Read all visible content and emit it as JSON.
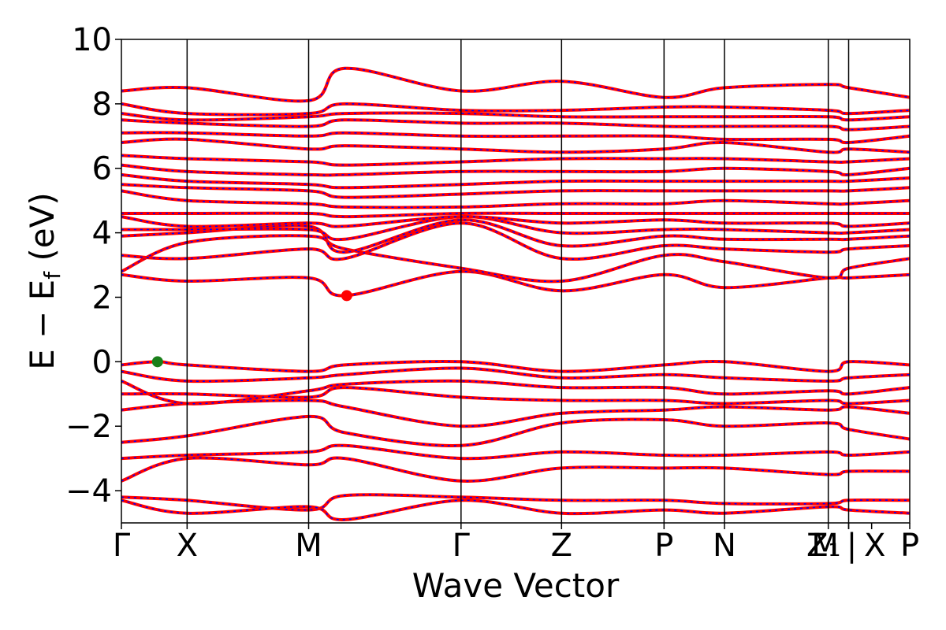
{
  "chart_data": {
    "type": "line",
    "title": "",
    "xlabel": "Wave Vector",
    "ylabel_parts": {
      "main": "E − E",
      "sub": "f",
      "unit": " (eV)"
    },
    "ylim": [
      -5,
      10
    ],
    "yticks": [
      -4,
      -2,
      0,
      2,
      4,
      6,
      8,
      10
    ],
    "ytick_labels": [
      "−4",
      "−2",
      "0",
      "2",
      "4",
      "6",
      "8",
      "10"
    ],
    "xlim": [
      0,
      12
    ],
    "kpath_ticks": [
      {
        "x": 0.0,
        "label": "Γ"
      },
      {
        "x": 1.0,
        "label": "X"
      },
      {
        "x": 2.85,
        "label": "M"
      },
      {
        "x": 5.17,
        "label": "Γ"
      },
      {
        "x": 6.7,
        "label": "Z"
      },
      {
        "x": 8.26,
        "label": "P"
      },
      {
        "x": 9.18,
        "label": "N"
      },
      {
        "x": 10.76,
        "label": "Z₁"
      },
      {
        "x": 11.07,
        "label": "M"
      },
      {
        "x": 11.07,
        "label": "|"
      },
      {
        "x": 11.42,
        "label": "X"
      },
      {
        "x": 12.0,
        "label": "P"
      }
    ],
    "vertical_lines_x": [
      1.0,
      2.85,
      5.17,
      6.7,
      8.26,
      9.18,
      10.76,
      11.07
    ],
    "series_style": {
      "dft_color": "#ff0000",
      "wannier_color": "#0000ff",
      "dft_width": 4,
      "wannier_dash": "3,5"
    },
    "series": [
      {
        "x": [
          0,
          1,
          2.85,
          3.4,
          5.17,
          6.7,
          8.26,
          9.18,
          10.76,
          11.07,
          12
        ],
        "y": [
          -4.2,
          -4.3,
          -4.6,
          -4.15,
          -4.2,
          -4.3,
          -4.3,
          -4.4,
          -4.4,
          -4.3,
          -4.3
        ]
      },
      {
        "x": [
          0,
          1,
          2.85,
          3.4,
          5.17,
          6.7,
          8.26,
          9.18,
          10.76,
          11.07,
          12
        ],
        "y": [
          -4.3,
          -4.7,
          -4.5,
          -4.9,
          -4.3,
          -4.7,
          -4.6,
          -4.7,
          -4.5,
          -4.6,
          -4.7
        ]
      },
      {
        "x": [
          0,
          1,
          2.85,
          3.4,
          5.17,
          6.7,
          8.26,
          9.18,
          10.76,
          11.07,
          12
        ],
        "y": [
          -3.7,
          -3.0,
          -3.2,
          -3.0,
          -3.7,
          -3.3,
          -3.3,
          -3.3,
          -3.5,
          -3.4,
          -3.4
        ]
      },
      {
        "x": [
          0,
          1,
          2.85,
          3.4,
          5.17,
          6.7,
          8.26,
          9.18,
          10.76,
          11.07,
          12
        ],
        "y": [
          -3.0,
          -2.9,
          -2.8,
          -2.6,
          -3.0,
          -2.8,
          -2.9,
          -2.9,
          -2.8,
          -2.9,
          -2.8
        ]
      },
      {
        "x": [
          0,
          1,
          2.85,
          3.4,
          5.17,
          6.7,
          8.26,
          9.18,
          10.76,
          11.07,
          12
        ],
        "y": [
          -2.5,
          -2.3,
          -1.7,
          -2.2,
          -2.6,
          -1.9,
          -1.8,
          -2.0,
          -1.9,
          -2.1,
          -2.4
        ]
      },
      {
        "x": [
          0,
          1,
          2.85,
          3.4,
          5.17,
          6.7,
          8.26,
          9.18,
          10.76,
          11.07,
          12
        ],
        "y": [
          -1.5,
          -1.3,
          -1.2,
          -1.4,
          -2.0,
          -1.6,
          -1.5,
          -1.4,
          -1.5,
          -1.4,
          -1.6
        ]
      },
      {
        "x": [
          0,
          1,
          2.85,
          3.4,
          5.17,
          6.7,
          8.26,
          9.18,
          10.76,
          11.07,
          12
        ],
        "y": [
          -1.0,
          -1.0,
          -1.1,
          -0.8,
          -1.1,
          -1.2,
          -1.2,
          -1.3,
          -1.2,
          -1.3,
          -1.2
        ]
      },
      {
        "x": [
          0,
          1,
          2.85,
          3.4,
          5.17,
          6.7,
          8.26,
          9.18,
          10.76,
          11.07,
          12
        ],
        "y": [
          -0.6,
          -1.3,
          -0.9,
          -0.7,
          -0.6,
          -0.8,
          -0.8,
          -1.0,
          -0.9,
          -1.0,
          -0.8
        ]
      },
      {
        "x": [
          0,
          1,
          2.85,
          3.4,
          5.17,
          6.7,
          8.26,
          9.18,
          10.76,
          11.07,
          12
        ],
        "y": [
          -0.3,
          -0.6,
          -0.5,
          -0.4,
          -0.2,
          -0.5,
          -0.4,
          -0.5,
          -0.6,
          -0.5,
          -0.4
        ]
      },
      {
        "x": [
          0,
          0.55,
          1,
          2.85,
          3.4,
          5.17,
          6.7,
          8.26,
          9.18,
          10.76,
          11.07,
          12
        ],
        "y": [
          -0.1,
          0.0,
          -0.1,
          -0.3,
          -0.1,
          0.0,
          -0.3,
          -0.1,
          0.0,
          -0.3,
          0.0,
          -0.1
        ]
      },
      {
        "x": [
          0,
          1,
          2.85,
          3.4,
          5.17,
          6.7,
          8.26,
          9.18,
          10.76,
          11.07,
          12
        ],
        "y": [
          2.7,
          2.5,
          2.6,
          2.05,
          2.8,
          2.2,
          2.7,
          2.3,
          2.6,
          2.6,
          2.7
        ]
      },
      {
        "x": [
          0,
          1,
          2.85,
          3.4,
          5.17,
          6.7,
          8.26,
          9.18,
          10.76,
          11.07,
          12
        ],
        "y": [
          2.8,
          3.7,
          3.9,
          3.5,
          2.9,
          2.5,
          3.3,
          3.1,
          2.6,
          2.9,
          3.2
        ]
      },
      {
        "x": [
          0,
          1,
          2.85,
          3.4,
          5.17,
          6.7,
          8.26,
          9.18,
          10.76,
          11.07,
          12
        ],
        "y": [
          3.3,
          3.2,
          3.5,
          3.2,
          4.3,
          3.2,
          3.6,
          3.5,
          3.4,
          3.5,
          3.6
        ]
      },
      {
        "x": [
          0,
          1,
          2.85,
          3.4,
          5.17,
          6.7,
          8.26,
          9.18,
          10.76,
          11.07,
          12
        ],
        "y": [
          3.9,
          4.0,
          4.2,
          3.4,
          4.4,
          3.6,
          3.9,
          3.8,
          3.8,
          3.8,
          3.9
        ]
      },
      {
        "x": [
          0,
          1,
          2.85,
          3.4,
          5.17,
          6.7,
          8.26,
          9.18,
          10.76,
          11.07,
          12
        ],
        "y": [
          4.1,
          4.1,
          4.1,
          3.8,
          4.5,
          4.0,
          4.1,
          4.1,
          4.0,
          4.0,
          4.1
        ]
      },
      {
        "x": [
          0,
          1,
          2.85,
          3.4,
          5.17,
          6.7,
          8.26,
          9.18,
          10.76,
          11.07,
          12
        ],
        "y": [
          4.5,
          4.2,
          4.3,
          4.2,
          4.5,
          4.3,
          4.4,
          4.3,
          4.3,
          4.2,
          4.3
        ]
      },
      {
        "x": [
          0,
          1,
          2.85,
          3.4,
          5.17,
          6.7,
          8.26,
          9.18,
          10.76,
          11.07,
          12
        ],
        "y": [
          4.6,
          4.6,
          4.6,
          4.5,
          4.6,
          4.6,
          4.6,
          4.6,
          4.6,
          4.6,
          4.6
        ]
      },
      {
        "x": [
          0,
          1,
          2.85,
          3.4,
          5.17,
          6.7,
          8.26,
          9.18,
          10.76,
          11.07,
          12
        ],
        "y": [
          5.3,
          5.0,
          4.9,
          4.8,
          4.8,
          4.9,
          4.9,
          5.0,
          4.9,
          4.9,
          5.0
        ]
      },
      {
        "x": [
          0,
          1,
          2.85,
          3.4,
          5.17,
          6.7,
          8.26,
          9.18,
          10.76,
          11.07,
          12
        ],
        "y": [
          5.5,
          5.4,
          5.3,
          5.1,
          5.2,
          5.3,
          5.3,
          5.3,
          5.3,
          5.3,
          5.4
        ]
      },
      {
        "x": [
          0,
          1,
          2.85,
          3.4,
          5.17,
          6.7,
          8.26,
          9.18,
          10.76,
          11.07,
          12
        ],
        "y": [
          5.8,
          5.6,
          5.5,
          5.4,
          5.5,
          5.6,
          5.6,
          5.6,
          5.6,
          5.6,
          5.7
        ]
      },
      {
        "x": [
          0,
          1,
          2.85,
          3.4,
          5.17,
          6.7,
          8.26,
          9.18,
          10.76,
          11.07,
          12
        ],
        "y": [
          6.1,
          5.9,
          5.8,
          5.8,
          5.9,
          5.9,
          5.9,
          6.0,
          5.9,
          5.8,
          6.0
        ]
      },
      {
        "x": [
          0,
          1,
          2.85,
          3.4,
          5.17,
          6.7,
          8.26,
          9.18,
          10.76,
          11.07,
          12
        ],
        "y": [
          6.4,
          6.3,
          6.2,
          6.1,
          6.2,
          6.3,
          6.3,
          6.3,
          6.2,
          6.2,
          6.3
        ]
      },
      {
        "x": [
          0,
          1,
          2.85,
          3.4,
          5.17,
          6.7,
          8.26,
          9.18,
          10.76,
          11.07,
          12
        ],
        "y": [
          6.8,
          6.9,
          6.6,
          6.7,
          6.6,
          6.5,
          6.6,
          6.8,
          6.5,
          6.6,
          6.5
        ]
      },
      {
        "x": [
          0,
          1,
          2.85,
          3.4,
          5.17,
          6.7,
          8.26,
          9.18,
          10.76,
          11.07,
          12
        ],
        "y": [
          7.1,
          7.1,
          7.0,
          7.1,
          7.0,
          7.0,
          7.0,
          6.9,
          6.9,
          6.8,
          7.0
        ]
      },
      {
        "x": [
          0,
          1,
          2.85,
          3.4,
          5.17,
          6.7,
          8.26,
          9.18,
          10.76,
          11.07,
          12
        ],
        "y": [
          7.5,
          7.4,
          7.3,
          7.5,
          7.4,
          7.4,
          7.3,
          7.3,
          7.3,
          7.2,
          7.3
        ]
      },
      {
        "x": [
          0,
          1,
          2.85,
          3.4,
          5.17,
          6.7,
          8.26,
          9.18,
          10.76,
          11.07,
          12
        ],
        "y": [
          7.7,
          7.5,
          7.6,
          7.7,
          7.7,
          7.6,
          7.6,
          7.6,
          7.6,
          7.5,
          7.6
        ]
      },
      {
        "x": [
          0,
          1,
          2.85,
          3.4,
          5.17,
          6.7,
          8.26,
          9.18,
          10.76,
          11.07,
          12
        ],
        "y": [
          8.0,
          7.7,
          7.7,
          8.0,
          7.8,
          7.8,
          7.9,
          7.9,
          7.8,
          7.7,
          7.8
        ]
      },
      {
        "x": [
          0,
          1,
          2.85,
          3.4,
          5.17,
          6.7,
          8.26,
          9.18,
          10.76,
          11.07,
          12
        ],
        "y": [
          8.4,
          8.5,
          8.1,
          9.1,
          8.4,
          8.7,
          8.2,
          8.5,
          8.6,
          8.5,
          8.2
        ]
      }
    ],
    "markers": [
      {
        "name": "valence-band-maximum",
        "x": 0.55,
        "y": 0.0,
        "color": "#1a7f1a"
      },
      {
        "name": "conduction-band-minimum",
        "x": 3.43,
        "y": 2.05,
        "color": "#ff0000"
      }
    ]
  }
}
